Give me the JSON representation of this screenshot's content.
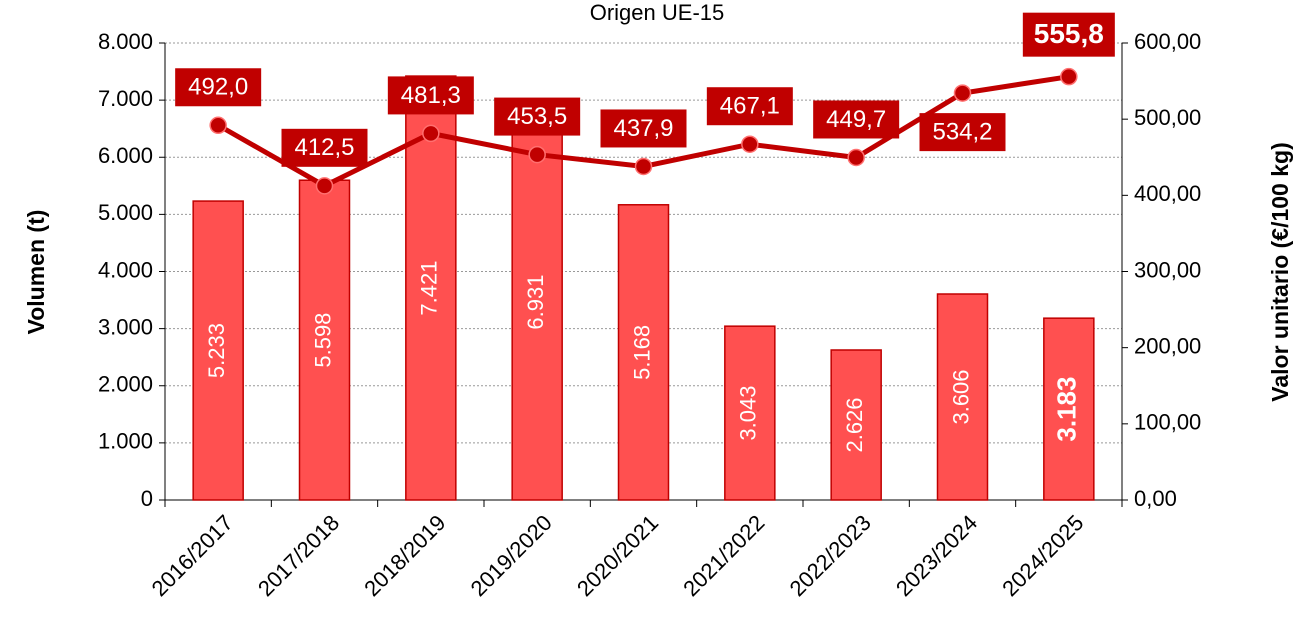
{
  "chart_data": {
    "type": "bar_line",
    "title": "Origen UE-15",
    "categories": [
      "2016/2017",
      "2017/2018",
      "2018/2019",
      "2019/2020",
      "2020/2021",
      "2021/2022",
      "2022/2023",
      "2023/2024",
      "2024/2025"
    ],
    "series": [
      {
        "name": "Volumen (t)",
        "type": "bar",
        "color": "#ff5050",
        "values": [
          5233,
          5598,
          7421,
          6931,
          5168,
          3043,
          2626,
          3606,
          3183
        ],
        "value_labels": [
          "5.233",
          "5.598",
          "7.421",
          "6.931",
          "5.168",
          "3.043",
          "2.626",
          "3.606",
          "3.183"
        ]
      },
      {
        "name": "Valor unitario (€/100 kg)",
        "type": "line",
        "axis": "y2",
        "color": "#c00000",
        "values": [
          492.0,
          412.5,
          481.3,
          453.5,
          437.9,
          467.1,
          449.7,
          534.2,
          555.8
        ],
        "value_labels": [
          "492,0",
          "412,5",
          "481,3",
          "453,5",
          "437,9",
          "467,1",
          "449,7",
          "534,2",
          "555,8"
        ]
      }
    ],
    "ylabel": "Volumen (t)",
    "y2label": "Valor unitario (€/100 kg)",
    "ylim": [
      0,
      8000
    ],
    "yticks": [
      0,
      {
        "value": 1000,
        "label": "1.000"
      },
      {
        "value": 2000,
        "label": "2.000"
      },
      {
        "value": 3000,
        "label": "3.000"
      },
      {
        "value": 4000,
        "label": "4.000"
      },
      {
        "value": 5000,
        "label": "5.000"
      },
      {
        "value": 6000,
        "label": "6.000"
      },
      {
        "value": 7000,
        "label": "7.000"
      },
      {
        "value": 8000,
        "label": "8.000"
      }
    ],
    "y2lim": [
      0,
      600
    ],
    "y2ticks": [
      {
        "value": 0,
        "label": "0,00"
      },
      {
        "value": 100,
        "label": "100,00"
      },
      {
        "value": 200,
        "label": "200,00"
      },
      {
        "value": 300,
        "label": "300,00"
      },
      {
        "value": 400,
        "label": "400,00"
      },
      {
        "value": 500,
        "label": "500,00"
      },
      {
        "value": 600,
        "label": "600,00"
      }
    ],
    "grid": true
  }
}
